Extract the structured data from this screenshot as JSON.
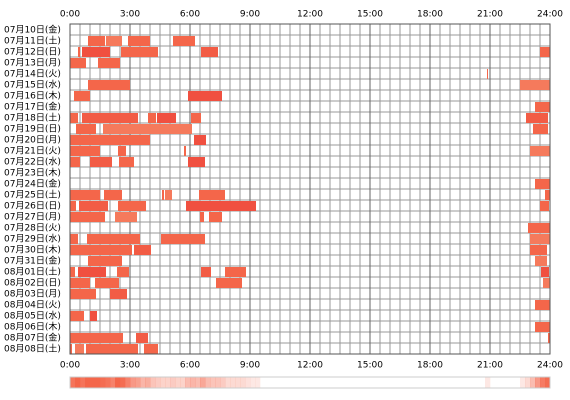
{
  "chart_data": {
    "type": "timeline",
    "color": "#f4664a",
    "xlim": [
      0,
      24
    ],
    "xticks": [
      {
        "value": 0,
        "label": "0:00"
      },
      {
        "value": 3,
        "label": "3:00"
      },
      {
        "value": 6,
        "label": "6:00"
      },
      {
        "value": 9,
        "label": "9:00"
      },
      {
        "value": 12,
        "label": "12:00"
      },
      {
        "value": 15,
        "label": "15:00"
      },
      {
        "value": 18,
        "label": "18:00"
      },
      {
        "value": 21,
        "label": "21:00"
      },
      {
        "value": 24,
        "label": "24:00"
      }
    ],
    "categories": [
      "07月10日(金)",
      "07月11日(土)",
      "07月12日(日)",
      "07月13日(月)",
      "07月14日(火)",
      "07月15日(水)",
      "07月16日(木)",
      "07月17日(金)",
      "07月18日(土)",
      "07月19日(日)",
      "07月20日(月)",
      "07月21日(火)",
      "07月22日(水)",
      "07月23日(木)",
      "07月24日(金)",
      "07月25日(土)",
      "07月26日(日)",
      "07月27日(月)",
      "07月28日(火)",
      "07月29日(水)",
      "07月30日(木)",
      "07月31日(金)",
      "08月01日(土)",
      "08月02日(日)",
      "08月03日(月)",
      "08月04日(火)",
      "08月05日(水)",
      "08月06日(木)",
      "08月07日(金)",
      "08月08日(土)"
    ],
    "intervals": [
      [],
      [
        [
          0.9,
          1.75
        ],
        [
          1.8,
          2.6
        ],
        [
          2.9,
          4.0
        ],
        [
          5.15,
          6.25
        ]
      ],
      [
        [
          0.4,
          0.5
        ],
        [
          0.6,
          2.0
        ],
        [
          2.55,
          4.4
        ],
        [
          6.55,
          7.4
        ],
        [
          23.5,
          24
        ]
      ],
      [
        [
          0,
          0.8
        ],
        [
          1.4,
          2.5
        ]
      ],
      [
        [
          20.85,
          20.9
        ]
      ],
      [
        [
          0.9,
          3.0
        ],
        [
          22.5,
          24
        ]
      ],
      [
        [
          0.2,
          1.0
        ],
        [
          5.9,
          7.6
        ]
      ],
      [
        [
          23.25,
          24
        ]
      ],
      [
        [
          0,
          0.4
        ],
        [
          0.6,
          3.4
        ],
        [
          3.9,
          4.3
        ],
        [
          4.35,
          5.3
        ],
        [
          6.05,
          6.55
        ],
        [
          22.8,
          23.9
        ]
      ],
      [
        [
          0.3,
          1.3
        ],
        [
          1.65,
          6.1
        ],
        [
          23.15,
          23.9
        ]
      ],
      [
        [
          0,
          4.0
        ],
        [
          6.2,
          6.8
        ]
      ],
      [
        [
          0,
          1.5
        ],
        [
          2.4,
          2.8
        ],
        [
          5.7,
          5.8
        ],
        [
          23,
          24
        ]
      ],
      [
        [
          0,
          0.5
        ],
        [
          1.0,
          2.1
        ],
        [
          2.45,
          3.2
        ],
        [
          5.9,
          6.75
        ]
      ],
      [],
      [
        [
          23.25,
          24
        ]
      ],
      [
        [
          0,
          1.5
        ],
        [
          1.7,
          2.6
        ],
        [
          4.6,
          4.7
        ],
        [
          4.75,
          5.1
        ],
        [
          6.45,
          7.75
        ],
        [
          23.75,
          24
        ]
      ],
      [
        [
          0,
          0.3
        ],
        [
          0.45,
          1.9
        ],
        [
          2.4,
          3.8
        ],
        [
          5.8,
          9.3
        ],
        [
          23.5,
          23.95
        ]
      ],
      [
        [
          0,
          1.75
        ],
        [
          2.25,
          3.35
        ],
        [
          6.5,
          6.7
        ],
        [
          6.95,
          7.6
        ]
      ],
      [
        [
          22.9,
          24
        ]
      ],
      [
        [
          0,
          0.4
        ],
        [
          0.85,
          3.5
        ],
        [
          4.55,
          6.75
        ],
        [
          23,
          24
        ]
      ],
      [
        [
          0,
          3.1
        ],
        [
          3.2,
          4.05
        ],
        [
          23,
          23.85
        ]
      ],
      [
        [
          0.9,
          2.6
        ],
        [
          23.25,
          23.85
        ]
      ],
      [
        [
          0,
          0.25
        ],
        [
          0.4,
          1.8
        ],
        [
          2.35,
          2.95
        ],
        [
          6.55,
          7.05
        ],
        [
          7.75,
          8.8
        ],
        [
          23.55,
          23.95
        ]
      ],
      [
        [
          0,
          1.0
        ],
        [
          1.25,
          2.45
        ],
        [
          7.3,
          8.6
        ],
        [
          23.65,
          24
        ]
      ],
      [
        [
          0,
          1.3
        ],
        [
          2.0,
          2.85
        ]
      ],
      [
        [
          23.25,
          24
        ]
      ],
      [
        [
          0,
          0.7
        ],
        [
          1.0,
          1.35
        ]
      ],
      [
        [
          23.25,
          24
        ]
      ],
      [
        [
          0,
          2.65
        ],
        [
          3.3,
          3.9
        ],
        [
          23.9,
          24
        ]
      ],
      [
        [
          0,
          0.1
        ],
        [
          0.25,
          0.7
        ],
        [
          0.8,
          3.4
        ],
        [
          3.7,
          4.1
        ],
        [
          4.1,
          4.4
        ]
      ]
    ]
  }
}
